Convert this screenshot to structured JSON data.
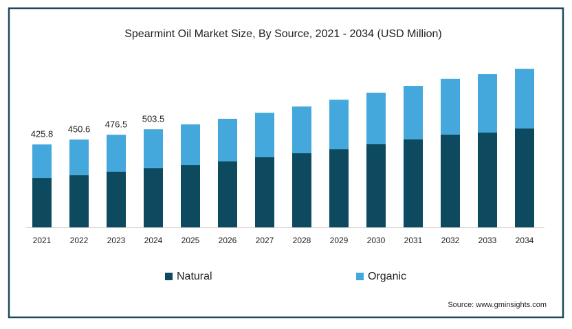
{
  "chart_data": {
    "type": "stacked_bar",
    "title": "Spearmint Oil Market Size, By Source, 2021 - 2034 (USD Million)",
    "categories": [
      "2021",
      "2022",
      "2023",
      "2024",
      "2025",
      "2026",
      "2027",
      "2028",
      "2029",
      "2030",
      "2031",
      "2032",
      "2033",
      "2034"
    ],
    "series": [
      {
        "name": "Natural",
        "color": "#0d4a60",
        "values": [
          254,
          268,
          286,
          304,
          321,
          339,
          360,
          381,
          402,
          427,
          452,
          477,
          487,
          508
        ]
      },
      {
        "name": "Organic",
        "color": "#45a8dc",
        "values": [
          172,
          183,
          190,
          200,
          208,
          219,
          229,
          240,
          254,
          265,
          275,
          286,
          300,
          307
        ]
      }
    ],
    "totals": [
      425.8,
      450.6,
      476.5,
      503.5
    ],
    "ylim": [
      0,
      900
    ],
    "source": "Source: www.gminsights.com"
  }
}
